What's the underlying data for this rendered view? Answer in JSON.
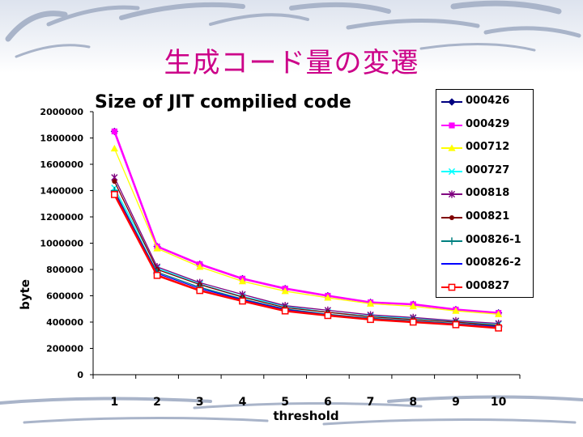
{
  "slide": {
    "title": "生成コード量の変遷"
  },
  "chart_data": {
    "type": "line",
    "title": "Size of JIT compilied code",
    "xlabel": "threshold",
    "ylabel": "byte",
    "categories": [
      "1",
      "2",
      "3",
      "4",
      "5",
      "6",
      "7",
      "8",
      "9",
      "10"
    ],
    "ylim": [
      0,
      2000000
    ],
    "yticks": [
      "0",
      "200000",
      "400000",
      "600000",
      "800000",
      "1000000",
      "1200000",
      "1400000",
      "1600000",
      "1800000",
      "2000000"
    ],
    "grid": false,
    "legend_position": "right",
    "series": [
      {
        "name": "000426",
        "color": "#000080",
        "marker": "diamond",
        "values": [
          1850000,
          975000,
          840000,
          730000,
          655000,
          600000,
          550000,
          535000,
          495000,
          470000
        ]
      },
      {
        "name": "000429",
        "color": "#ff00ff",
        "marker": "square",
        "values": [
          1850000,
          975000,
          840000,
          730000,
          655000,
          600000,
          550000,
          535000,
          495000,
          470000
        ]
      },
      {
        "name": "000712",
        "color": "#ffff00",
        "marker": "triangle",
        "values": [
          1720000,
          960000,
          820000,
          710000,
          635000,
          585000,
          540000,
          520000,
          485000,
          460000
        ]
      },
      {
        "name": "000727",
        "color": "#00ffff",
        "marker": "x",
        "values": [
          1420000,
          810000,
          690000,
          595000,
          520000,
          475000,
          445000,
          430000,
          405000,
          385000
        ]
      },
      {
        "name": "000818",
        "color": "#800080",
        "marker": "star",
        "values": [
          1500000,
          820000,
          700000,
          610000,
          525000,
          490000,
          455000,
          435000,
          410000,
          390000
        ]
      },
      {
        "name": "000821",
        "color": "#800000",
        "marker": "circle",
        "values": [
          1470000,
          800000,
          685000,
          590000,
          510000,
          475000,
          440000,
          420000,
          400000,
          375000
        ]
      },
      {
        "name": "000826-1",
        "color": "#008080",
        "marker": "plus",
        "values": [
          1400000,
          780000,
          665000,
          575000,
          500000,
          460000,
          430000,
          410000,
          390000,
          370000
        ]
      },
      {
        "name": "000826-2",
        "color": "#0000ff",
        "marker": "dash",
        "values": [
          1390000,
          770000,
          655000,
          570000,
          495000,
          455000,
          425000,
          405000,
          385000,
          365000
        ]
      },
      {
        "name": "000827",
        "color": "#ff0000",
        "marker": "square-open",
        "values": [
          1370000,
          755000,
          640000,
          560000,
          485000,
          450000,
          420000,
          400000,
          380000,
          355000
        ]
      }
    ]
  }
}
